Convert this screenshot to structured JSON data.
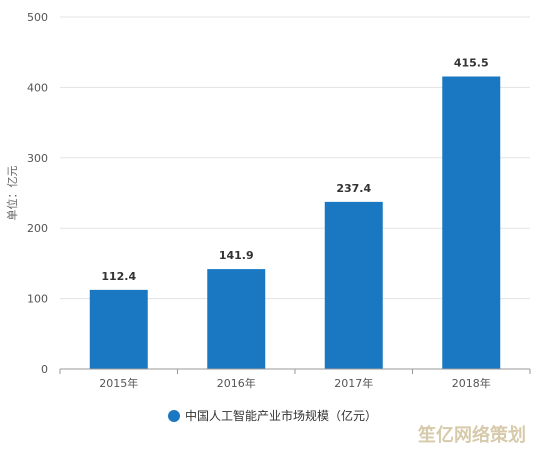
{
  "chart_data": {
    "type": "bar",
    "categories": [
      "2015年",
      "2016年",
      "2017年",
      "2018年"
    ],
    "series": [
      {
        "name": "中国人工智能产业市场规模（亿元）",
        "values": [
          112.4,
          141.9,
          237.4,
          415.5
        ]
      }
    ],
    "data_labels": [
      "112.4",
      "141.9",
      "237.4",
      "415.5"
    ],
    "ylabel": "单位：亿元",
    "ylim": [
      0,
      500
    ],
    "yticks": [
      0,
      100,
      200,
      300,
      400,
      500
    ],
    "grid": true,
    "legend": "bottom",
    "colors": {
      "bar": "#1a78c2",
      "grid": "#e3e3e3",
      "axis": "#999999"
    }
  },
  "watermark": "笙亿网络策划"
}
